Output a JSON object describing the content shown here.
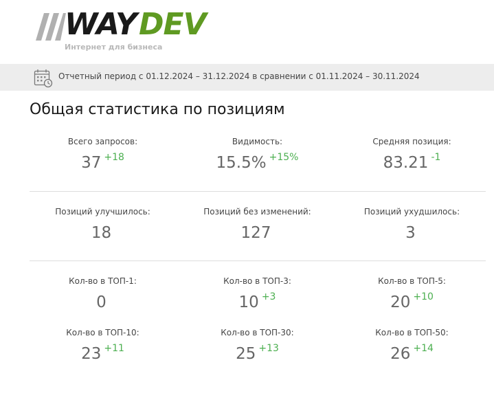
{
  "logo": {
    "word_way": "WAY",
    "word_dev": "DEV",
    "tagline": "Интернет для бизнеса",
    "colors": {
      "way": "#1a1a1a",
      "dev": "#5f9a22",
      "slashes": "#b0b0b0"
    }
  },
  "period": {
    "icon": "calendar-icon",
    "text": "Отчетный период с 01.12.2024 – 31.12.2024 в сравнении с 01.11.2024 – 30.11.2024"
  },
  "section": {
    "title": "Общая статистика по позициям"
  },
  "stats": [
    {
      "label": "Всего запросов:",
      "value": "37",
      "delta": "+18"
    },
    {
      "label": "Видимость:",
      "value": "15.5%",
      "delta": "+15%"
    },
    {
      "label": "Средняя позиция:",
      "value": "83.21",
      "delta": "-1"
    },
    {
      "label": "Позиций улучшилось:",
      "value": "18",
      "delta": ""
    },
    {
      "label": "Позиций без изменений:",
      "value": "127",
      "delta": ""
    },
    {
      "label": "Позиций ухудшилось:",
      "value": "3",
      "delta": ""
    },
    {
      "label": "Кол-во в ТОП-1:",
      "value": "0",
      "delta": ""
    },
    {
      "label": "Кол-во в ТОП-3:",
      "value": "10",
      "delta": "+3"
    },
    {
      "label": "Кол-во в ТОП-5:",
      "value": "20",
      "delta": "+10"
    },
    {
      "label": "Кол-во в ТОП-10:",
      "value": "23",
      "delta": "+11"
    },
    {
      "label": "Кол-во в ТОП-30:",
      "value": "25",
      "delta": "+13"
    },
    {
      "label": "Кол-во в ТОП-50:",
      "value": "26",
      "delta": "+14"
    }
  ],
  "colors": {
    "positive_delta": "#4caf50",
    "value": "#666666",
    "period_bar": "#ededed"
  }
}
